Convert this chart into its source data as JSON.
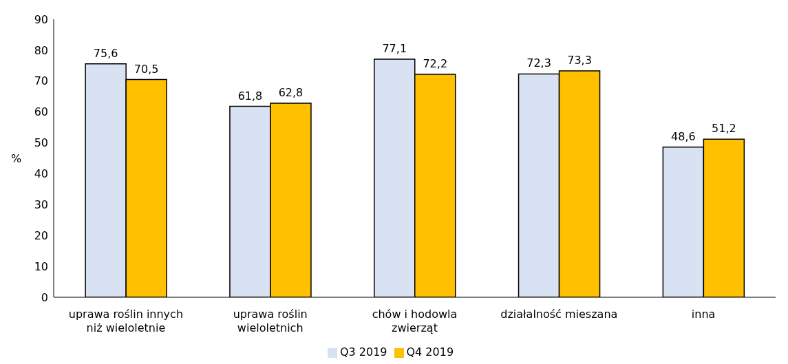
{
  "chart_data": {
    "type": "bar",
    "ylabel": "%",
    "categories": [
      "uprawa roślin innych niż wieloletnie",
      "uprawa roślin wieloletnich",
      "chów i hodowla zwierząt",
      "działalność mieszana",
      "inna"
    ],
    "series": [
      {
        "name": "Q3 2019",
        "color": "#d9e2f3",
        "values": [
          75.6,
          61.8,
          77.1,
          72.3,
          48.6
        ],
        "value_labels": [
          "75,6",
          "61,8",
          "77,1",
          "72,3",
          "48,6"
        ]
      },
      {
        "name": "Q4 2019",
        "color": "#ffc000",
        "values": [
          70.5,
          62.8,
          72.2,
          73.3,
          51.2
        ],
        "value_labels": [
          "70,5",
          "62,8",
          "72,2",
          "73,3",
          "51,2"
        ]
      }
    ],
    "ylim": [
      0,
      90
    ],
    "yticks": [
      0,
      10,
      20,
      30,
      40,
      50,
      60,
      70,
      80,
      90
    ],
    "legend": "bottom"
  }
}
